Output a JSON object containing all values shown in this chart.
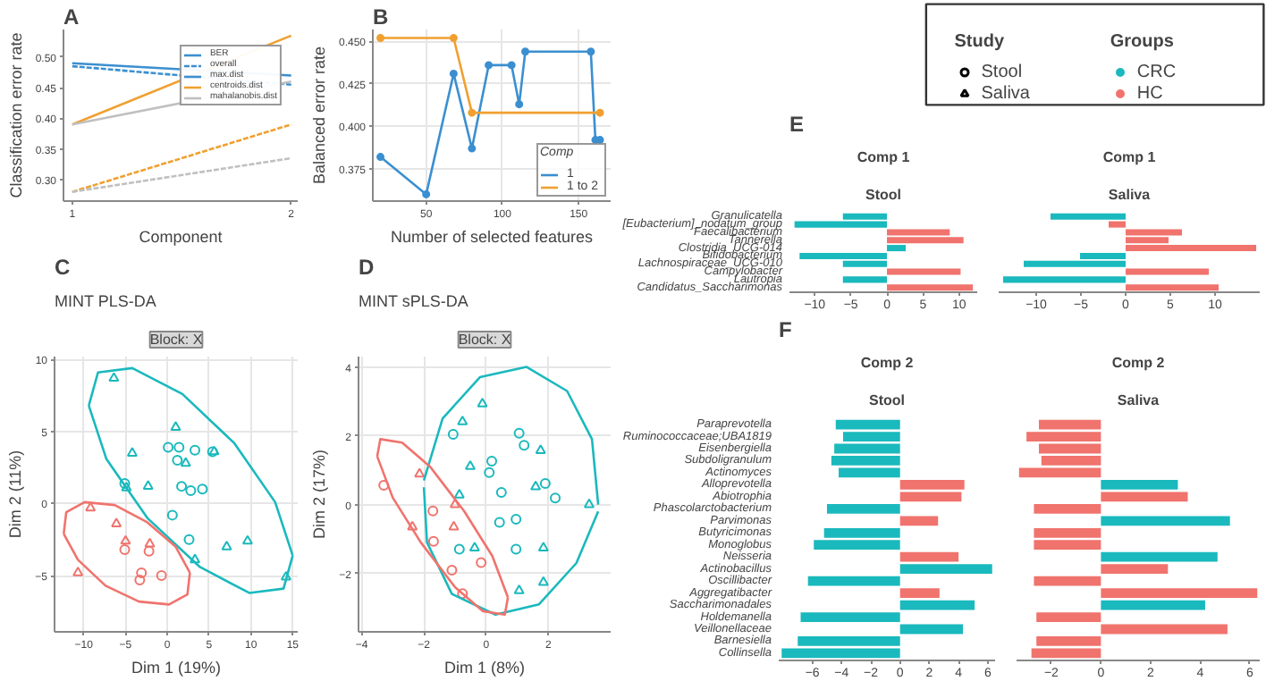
{
  "chart_data": [
    {
      "type": "line",
      "annotations": [
        "A",
        "BER",
        "overall"
      ],
      "xlabel": "Component",
      "ylabel": "Classification error rate",
      "x": [
        1,
        2
      ],
      "xlim": [
        0.96,
        2.03
      ],
      "xticks": [
        1,
        2
      ],
      "ylim": [
        0.265,
        0.545
      ],
      "yticks": [
        {
          "value": 0.3,
          "label": "0.30"
        },
        {
          "value": 0.35,
          "label": "0.35"
        },
        {
          "value": 0.4,
          "label": "0.40"
        },
        {
          "value": 0.45,
          "label": "0.45"
        },
        {
          "value": 0.5,
          "label": "0.50"
        }
      ],
      "legend": "top right",
      "series": [
        {
          "name": "max.dist",
          "color": "#3b8fd0",
          "line_style": "solid",
          "values": [
            0.49,
            0.47
          ]
        },
        {
          "color": "#3b8fd0",
          "line_style": "dashed",
          "values": [
            0.485,
            0.455
          ]
        },
        {
          "name": "centroids.dist",
          "color": "#f0a030",
          "line_style": "solid",
          "values": [
            0.39,
            0.535
          ]
        },
        {
          "color": "#f0a030",
          "line_style": "dashed",
          "values": [
            0.28,
            0.39
          ]
        },
        {
          "name": "mahalanobis.dist",
          "color": "#c0c0c0",
          "line_style": "solid",
          "values": [
            0.39,
            0.46
          ]
        },
        {
          "color": "#c0c0c0",
          "line_style": "dashed",
          "values": [
            0.28,
            0.335
          ]
        }
      ]
    },
    {
      "type": "line",
      "annotations": [
        "B"
      ],
      "xlabel": "Number of selected features",
      "ylabel": "Balanced error rate",
      "legend_title": "Comp",
      "legend": "bottom right",
      "marker": "circle",
      "grid": true,
      "xlim": [
        15,
        171
      ],
      "xticks": [
        50,
        100,
        150
      ],
      "ylim": [
        0.356,
        0.457
      ],
      "yticks": [
        0.375,
        {
          "value": 0.4,
          "label": "0.400"
        },
        0.425,
        {
          "value": 0.45,
          "label": "0.450"
        }
      ],
      "series": [
        {
          "name": "1",
          "color": "#3b8fd0",
          "x": [
            20,
            50,
            68,
            80,
            91,
            106,
            111,
            115,
            158,
            161,
            164
          ],
          "values": [
            0.382,
            0.36,
            0.431,
            0.387,
            0.436,
            0.436,
            0.413,
            0.444,
            0.444,
            0.392,
            0.392
          ]
        },
        {
          "name": "1 to 2",
          "color": "#f0a030",
          "x": [
            20,
            68,
            80,
            164
          ],
          "values": [
            0.452,
            0.452,
            0.408,
            0.408
          ]
        }
      ]
    },
    {
      "type": "scatter",
      "title": "MINT PLS-DA",
      "subtitle": "Block: X",
      "annotations": [
        "C"
      ],
      "xlabel": "Dim 1 (19%)",
      "ylabel": "Dim 2 (11%)",
      "xlim": [
        -13.5,
        15.6
      ],
      "xticks": [
        -10,
        -5,
        0,
        5,
        10,
        15
      ],
      "ylim": [
        -8.9,
        10.2
      ],
      "yticks": [
        -5,
        0,
        5,
        10
      ],
      "grid": true,
      "series": [
        {
          "color": "#1ab9bd",
          "marker": "triangle",
          "x": [
            -6.4,
            1.0,
            -4.2,
            2.2,
            5.6,
            -2.3,
            -4.9,
            7.1,
            9.6,
            3.3,
            14.2
          ],
          "values": [
            8.7,
            5.3,
            3.5,
            2.8,
            3.6,
            1.2,
            1.1,
            -3.0,
            -2.6,
            -3.9,
            -5.1
          ]
        },
        {
          "color": "#1ab9bd",
          "marker": "circle",
          "x": [
            0.1,
            1.4,
            1.2,
            3.3,
            5.4,
            -5.1,
            1.7,
            2.8,
            4.2,
            0.6,
            2.6
          ],
          "values": [
            3.9,
            3.9,
            3.0,
            3.7,
            3.6,
            1.4,
            1.2,
            0.9,
            1.0,
            -0.8,
            -2.5
          ]
        },
        {
          "color": "#f0736d",
          "marker": "triangle",
          "x": [
            -9.2,
            -6.1,
            -10.7,
            -5.0,
            -2.1
          ],
          "values": [
            -0.3,
            -1.4,
            -4.8,
            -2.6,
            -2.8
          ]
        },
        {
          "color": "#f0736d",
          "marker": "circle",
          "x": [
            -5.1,
            -2.2,
            -3.1,
            -3.3,
            -0.7
          ],
          "values": [
            -3.2,
            -3.3,
            -4.8,
            -5.3,
            -5.0
          ]
        },
        {
          "type": "line",
          "color": "#1ab9bd",
          "x": [
            -9.4,
            -8.3,
            -4.2,
            1.8,
            8.0,
            12.9,
            15.0
          ],
          "values": [
            6.8,
            9.1,
            9.4,
            7.6,
            4.2,
            0.1,
            -3.6
          ]
        },
        {
          "type": "line",
          "color": "#1ab9bd",
          "x": [
            -9.4,
            -7.3,
            -2.4,
            3.9,
            9.8,
            13.9,
            15.0
          ],
          "values": [
            6.8,
            3.1,
            -1.0,
            -4.4,
            -6.2,
            -5.9,
            -3.6
          ]
        },
        {
          "type": "line",
          "color": "#f0736d",
          "x": [
            -12.4,
            -12.1,
            -9.9,
            -6.3,
            -2.4,
            1.0,
            2.7
          ],
          "values": [
            -2.1,
            -0.6,
            0.1,
            -0.1,
            -1.3,
            -3.0,
            -4.8
          ]
        },
        {
          "type": "line",
          "color": "#f0736d",
          "x": [
            -12.4,
            -10.7,
            -7.4,
            -3.4,
            0.2,
            2.4,
            2.7
          ],
          "values": [
            -2.1,
            -3.9,
            -5.7,
            -6.8,
            -7.0,
            -6.3,
            -4.8
          ]
        }
      ]
    },
    {
      "type": "scatter",
      "title": "MINT sPLS-DA",
      "subtitle": "Block: X",
      "annotations": [
        "D"
      ],
      "xlabel": "Dim 1 (8%)",
      "ylabel": "Dim 2 (17%)",
      "xlim": [
        -4.1,
        4.0
      ],
      "xticks": [
        -4,
        -2,
        0,
        2
      ],
      "ylim": [
        -3.7,
        4.3
      ],
      "yticks": [
        -2,
        0,
        2,
        4
      ],
      "grid": true,
      "series": [
        {
          "color": "#1ab9bd",
          "marker": "triangle",
          "x": [
            -0.12,
            -0.76,
            1.75,
            -0.51,
            1.59,
            3.31,
            -0.86,
            -0.37,
            1.84,
            1.06,
            1.84
          ],
          "values": [
            2.93,
            2.41,
            1.57,
            1.11,
            0.52,
            0,
            0.28,
            -1.26,
            -1.26,
            -2.5,
            -2.26
          ]
        },
        {
          "color": "#1ab9bd",
          "marker": "circle",
          "x": [
            -1.06,
            1.06,
            1.22,
            0.18,
            0.1,
            1.9,
            0.49,
            2.22,
            0.96,
            0.43,
            -0.86,
            0.96
          ],
          "values": [
            2.04,
            2.07,
            1.72,
            1.26,
            0.93,
            0.61,
            0.35,
            0.19,
            -0.43,
            -0.52,
            -1.3,
            -1.3
          ]
        },
        {
          "color": "#f0736d",
          "marker": "triangle",
          "x": [
            -2.14,
            -1.0,
            -2.37,
            -1.04
          ],
          "values": [
            0.89,
            0,
            -0.65,
            -0.65
          ]
        },
        {
          "color": "#f0736d",
          "marker": "circle",
          "x": [
            -3.29,
            -1.71,
            -1.69,
            -1.1,
            -0.16,
            -0.76
          ],
          "values": [
            0.56,
            -0.19,
            -1.07,
            -1.91,
            -1.69,
            -2.59
          ]
        },
        {
          "type": "line",
          "color": "#1ab9bd",
          "x": [
            -2.0,
            -1.4,
            -0.2,
            1.3,
            2.6,
            3.4,
            3.6
          ],
          "values": [
            0.7,
            2.5,
            3.7,
            4.0,
            3.3,
            1.9,
            0.0
          ]
        },
        {
          "type": "line",
          "color": "#1ab9bd",
          "x": [
            -2.0,
            -1.9,
            -1.1,
            0.3,
            1.7,
            2.9,
            3.6
          ],
          "values": [
            0.5,
            -1.1,
            -2.6,
            -3.2,
            -2.9,
            -1.7,
            -0.2
          ]
        },
        {
          "type": "line",
          "color": "#f0736d",
          "x": [
            -3.5,
            -3.4,
            -2.7,
            -1.8,
            -0.7,
            0.2,
            0.7
          ],
          "values": [
            1.4,
            1.9,
            1.8,
            1.1,
            -0.2,
            -1.5,
            -2.7
          ]
        },
        {
          "type": "line",
          "color": "#f0736d",
          "x": [
            -3.5,
            -3.0,
            -2.1,
            -1.0,
            -0.1,
            0.6,
            0.7
          ],
          "values": [
            1.4,
            0.2,
            -1.1,
            -2.4,
            -3.1,
            -3.2,
            -2.7
          ]
        }
      ]
    },
    {
      "type": "other",
      "annotations": [
        "Study",
        "Groups"
      ],
      "series": [
        {
          "name": "Stool",
          "marker": "circle",
          "color": "#000000"
        },
        {
          "name": "Saliva",
          "marker": "triangle",
          "color": "#000000"
        },
        {
          "name": "CRC",
          "marker": "circle",
          "color": "#1ab9bd"
        },
        {
          "name": "HC",
          "marker": "circle",
          "color": "#f0736d"
        }
      ]
    },
    {
      "type": "bar",
      "orientation": "horizontal",
      "annotations": [
        "E"
      ],
      "title": "Comp 1",
      "subtitle": "Stool",
      "categories": [
        "Granulicatella",
        "[Eubacterium]_nodatum_group",
        "Faecalibacterium",
        "Tannerella",
        "Clostridia_UCG-014",
        "Bifidobacterium",
        "Lachnospiraceae_UCG-010",
        "Campylobacter",
        "Lautropia",
        "Candidatus_Saccharimonas"
      ],
      "values": [
        -6.1,
        -12.8,
        8.7,
        10.6,
        2.6,
        -12.1,
        -6.1,
        10.2,
        -6.1,
        11.9
      ],
      "colors": [
        "#1ab9bd",
        "#1ab9bd",
        "#f0736d",
        "#f0736d",
        "#1ab9bd",
        "#1ab9bd",
        "#1ab9bd",
        "#f0736d",
        "#1ab9bd",
        "#f0736d"
      ],
      "xlim": [
        -13.5,
        12.5
      ],
      "xticks": [
        -10,
        -5,
        0,
        5,
        10
      ]
    },
    {
      "type": "bar",
      "orientation": "horizontal",
      "title": "Comp 1",
      "subtitle": "Saliva",
      "categories": [
        null,
        null,
        null,
        null,
        null,
        null,
        null,
        null,
        null,
        null
      ],
      "values": [
        -8.4,
        -1.9,
        6.3,
        4.8,
        14.6,
        -5.1,
        -11.4,
        9.3,
        -13.7,
        10.4
      ],
      "colors": [
        "#1ab9bd",
        "#f0736d",
        "#f0736d",
        "#f0736d",
        "#f0736d",
        "#1ab9bd",
        "#1ab9bd",
        "#f0736d",
        "#1ab9bd",
        "#f0736d"
      ],
      "xlim": [
        -14.2,
        15
      ],
      "xticks": [
        -10,
        -5,
        0,
        5,
        10
      ]
    },
    {
      "type": "bar",
      "orientation": "horizontal",
      "annotations": [
        "F"
      ],
      "title": "Comp 2",
      "subtitle": "Stool",
      "categories": [
        "Paraprevotella",
        "Ruminococcaceae;UBA1819",
        "Eisenbergiella",
        "Subdoligranulum",
        "Actinomyces",
        "Alloprevotella",
        "Abiotrophia",
        "Phascolarctobacterium",
        "Parvimonas",
        "Butyricimonas",
        "Monoglobus",
        "Neisseria",
        "Actinobacillus",
        "Oscillibacter",
        "Aggregatibacter",
        "Saccharimonadales",
        "Holdemanella",
        "Veillonellaceae",
        "Barnesiella",
        "Collinsella"
      ],
      "values": [
        -4.4,
        -3.9,
        -4.5,
        -4.7,
        -4.2,
        4.4,
        4.2,
        -5.0,
        2.6,
        -5.2,
        -5.9,
        4.0,
        6.3,
        -6.3,
        2.7,
        5.1,
        -6.8,
        4.3,
        -7.0,
        -8.1
      ],
      "colors": [
        "#1ab9bd",
        "#1ab9bd",
        "#1ab9bd",
        "#1ab9bd",
        "#1ab9bd",
        "#f0736d",
        "#f0736d",
        "#1ab9bd",
        "#f0736d",
        "#1ab9bd",
        "#1ab9bd",
        "#f0736d",
        "#1ab9bd",
        "#1ab9bd",
        "#f0736d",
        "#1ab9bd",
        "#1ab9bd",
        "#1ab9bd",
        "#1ab9bd",
        "#1ab9bd"
      ],
      "xlim": [
        -8.3,
        6.5
      ],
      "xticks": [
        -6,
        -4,
        -2,
        0,
        2,
        4,
        6
      ]
    },
    {
      "type": "bar",
      "orientation": "horizontal",
      "title": "Comp 2",
      "subtitle": "Saliva",
      "categories": [
        null,
        null,
        null,
        null,
        null,
        null,
        null,
        null,
        null,
        null,
        null,
        null,
        null,
        null,
        null,
        null,
        null,
        null,
        null,
        null
      ],
      "values": [
        -2.5,
        -3.0,
        -2.5,
        -2.4,
        -3.3,
        3.1,
        3.5,
        -2.7,
        5.2,
        -2.7,
        -2.7,
        4.7,
        2.7,
        -2.7,
        6.3,
        4.2,
        -2.6,
        5.1,
        -2.6,
        -2.8
      ],
      "colors": [
        "#f0736d",
        "#f0736d",
        "#f0736d",
        "#f0736d",
        "#f0736d",
        "#1ab9bd",
        "#f0736d",
        "#f0736d",
        "#1ab9bd",
        "#f0736d",
        "#f0736d",
        "#1ab9bd",
        "#f0736d",
        "#f0736d",
        "#f0736d",
        "#1ab9bd",
        "#f0736d",
        "#f0736d",
        "#f0736d",
        "#f0736d"
      ],
      "xlim": [
        -3.4,
        6.4
      ],
      "xticks": [
        -2,
        0,
        2,
        4,
        6
      ]
    }
  ]
}
